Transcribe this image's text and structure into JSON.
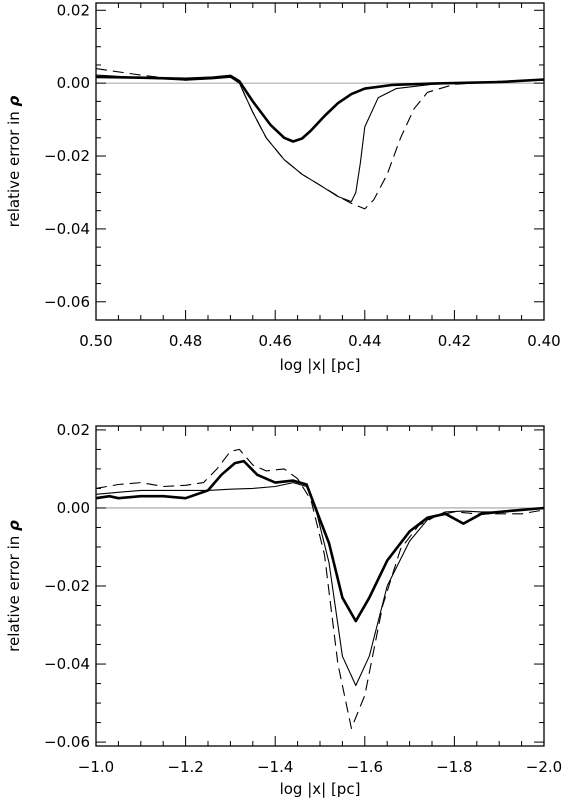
{
  "chart_data": [
    {
      "type": "line",
      "xlabel": "log |x| [pc]",
      "ylabel_text": "relative error in ",
      "ylabel_symbol": "ρ",
      "xlim": [
        0.5,
        0.4
      ],
      "ylim": [
        -0.065,
        0.022
      ],
      "xticks": [
        0.5,
        0.48,
        0.46,
        0.44,
        0.42,
        0.4
      ],
      "xtick_labels": [
        "0.50",
        "0.48",
        "0.46",
        "0.44",
        "0.42",
        "0.40"
      ],
      "yticks": [
        0.02,
        0.0,
        -0.02,
        -0.04,
        -0.06
      ],
      "ytick_labels": [
        "0.02",
        "0.00",
        "−0.02",
        "−0.04",
        "−0.06"
      ],
      "reference_line": 0,
      "series": [
        {
          "style": "thick",
          "points": [
            [
              0.5,
              0.0017
            ],
            [
              0.49,
              0.0015
            ],
            [
              0.48,
              0.0012
            ],
            [
              0.474,
              0.0015
            ],
            [
              0.47,
              0.002
            ],
            [
              0.468,
              0.0005
            ],
            [
              0.465,
              -0.005
            ],
            [
              0.461,
              -0.0115
            ],
            [
              0.458,
              -0.015
            ],
            [
              0.456,
              -0.016
            ],
            [
              0.454,
              -0.0152
            ],
            [
              0.452,
              -0.013
            ],
            [
              0.449,
              -0.009
            ],
            [
              0.446,
              -0.0055
            ],
            [
              0.443,
              -0.003
            ],
            [
              0.44,
              -0.0015
            ],
            [
              0.434,
              -0.0005
            ],
            [
              0.425,
              -0.0001
            ],
            [
              0.41,
              0.0003
            ],
            [
              0.4,
              0.001
            ]
          ]
        },
        {
          "style": "thin",
          "points": [
            [
              0.5,
              0.0022
            ],
            [
              0.49,
              0.0015
            ],
            [
              0.48,
              0.0008
            ],
            [
              0.474,
              0.0012
            ],
            [
              0.47,
              0.0016
            ],
            [
              0.468,
              0.0
            ],
            [
              0.465,
              -0.008
            ],
            [
              0.462,
              -0.015
            ],
            [
              0.458,
              -0.021
            ],
            [
              0.454,
              -0.025
            ],
            [
              0.45,
              -0.028
            ],
            [
              0.446,
              -0.0311
            ],
            [
              0.443,
              -0.0325
            ],
            [
              0.442,
              -0.03
            ],
            [
              0.441,
              -0.022
            ],
            [
              0.44,
              -0.012
            ],
            [
              0.437,
              -0.004
            ],
            [
              0.433,
              -0.0015
            ],
            [
              0.425,
              -0.0003
            ],
            [
              0.41,
              0.0003
            ],
            [
              0.4,
              0.001
            ]
          ]
        },
        {
          "style": "dashed",
          "points": [
            [
              0.5,
              0.004
            ],
            [
              0.49,
              0.0022
            ],
            [
              0.48,
              0.0008
            ],
            [
              0.474,
              0.0015
            ],
            [
              0.47,
              0.0018
            ],
            [
              0.468,
              0.0
            ],
            [
              0.465,
              -0.008
            ],
            [
              0.462,
              -0.015
            ],
            [
              0.458,
              -0.021
            ],
            [
              0.454,
              -0.025
            ],
            [
              0.45,
              -0.028
            ],
            [
              0.446,
              -0.031
            ],
            [
              0.443,
              -0.033
            ],
            [
              0.44,
              -0.0345
            ],
            [
              0.438,
              -0.032
            ],
            [
              0.435,
              -0.025
            ],
            [
              0.432,
              -0.015
            ],
            [
              0.429,
              -0.007
            ],
            [
              0.426,
              -0.0025
            ],
            [
              0.42,
              -0.0003
            ],
            [
              0.41,
              0.0005
            ],
            [
              0.4,
              0.0008
            ]
          ]
        }
      ]
    },
    {
      "type": "line",
      "xlabel": "log |x| [pc]",
      "ylabel_text": "relative error in ",
      "ylabel_symbol": "ρ",
      "xlim": [
        -1.0,
        -2.0
      ],
      "ylim": [
        -0.061,
        0.021
      ],
      "xticks": [
        -1.0,
        -1.2,
        -1.4,
        -1.6,
        -1.8,
        -2.0
      ],
      "xtick_labels": [
        "−1.0",
        "−1.2",
        "−1.4",
        "−1.6",
        "−1.8",
        "−2.0"
      ],
      "yticks": [
        0.02,
        0.0,
        -0.02,
        -0.04,
        -0.06
      ],
      "ytick_labels": [
        "0.02",
        "0.00",
        "−0.02",
        "−0.04",
        "−0.06"
      ],
      "reference_line": 0,
      "series": [
        {
          "style": "thick",
          "points": [
            [
              -1.0,
              0.0025
            ],
            [
              -1.03,
              0.003
            ],
            [
              -1.05,
              0.0025
            ],
            [
              -1.1,
              0.003
            ],
            [
              -1.15,
              0.003
            ],
            [
              -1.2,
              0.0025
            ],
            [
              -1.25,
              0.0045
            ],
            [
              -1.28,
              0.0085
            ],
            [
              -1.31,
              0.0115
            ],
            [
              -1.33,
              0.012
            ],
            [
              -1.36,
              0.0085
            ],
            [
              -1.4,
              0.0065
            ],
            [
              -1.44,
              0.007
            ],
            [
              -1.47,
              0.006
            ],
            [
              -1.49,
              0.0
            ],
            [
              -1.52,
              -0.009
            ],
            [
              -1.55,
              -0.023
            ],
            [
              -1.58,
              -0.029
            ],
            [
              -1.61,
              -0.023
            ],
            [
              -1.65,
              -0.0135
            ],
            [
              -1.7,
              -0.006
            ],
            [
              -1.74,
              -0.0025
            ],
            [
              -1.78,
              -0.0015
            ],
            [
              -1.82,
              -0.004
            ],
            [
              -1.86,
              -0.0015
            ],
            [
              -1.9,
              -0.001
            ],
            [
              -1.95,
              -0.0005
            ],
            [
              -2.0,
              0.0
            ]
          ]
        },
        {
          "style": "thin",
          "points": [
            [
              -1.0,
              0.0035
            ],
            [
              -1.05,
              0.004
            ],
            [
              -1.1,
              0.0045
            ],
            [
              -1.15,
              0.0045
            ],
            [
              -1.2,
              0.0045
            ],
            [
              -1.25,
              0.0045
            ],
            [
              -1.3,
              0.0048
            ],
            [
              -1.35,
              0.005
            ],
            [
              -1.4,
              0.0055
            ],
            [
              -1.44,
              0.0065
            ],
            [
              -1.47,
              0.0055
            ],
            [
              -1.49,
              0.0
            ],
            [
              -1.52,
              -0.014
            ],
            [
              -1.55,
              -0.038
            ],
            [
              -1.58,
              -0.0455
            ],
            [
              -1.61,
              -0.038
            ],
            [
              -1.65,
              -0.02
            ],
            [
              -1.7,
              -0.0085
            ],
            [
              -1.74,
              -0.003
            ],
            [
              -1.78,
              -0.001
            ],
            [
              -1.82,
              -0.0008
            ],
            [
              -1.86,
              -0.001
            ],
            [
              -1.9,
              -0.001
            ],
            [
              -1.95,
              -0.0005
            ],
            [
              -2.0,
              0.0
            ]
          ]
        },
        {
          "style": "dashed",
          "points": [
            [
              -1.0,
              0.005
            ],
            [
              -1.05,
              0.006
            ],
            [
              -1.1,
              0.0065
            ],
            [
              -1.15,
              0.0055
            ],
            [
              -1.2,
              0.0058
            ],
            [
              -1.24,
              0.0065
            ],
            [
              -1.27,
              0.01
            ],
            [
              -1.3,
              0.0145
            ],
            [
              -1.32,
              0.015
            ],
            [
              -1.35,
              0.011
            ],
            [
              -1.38,
              0.0095
            ],
            [
              -1.42,
              0.01
            ],
            [
              -1.45,
              0.0075
            ],
            [
              -1.48,
              0.002
            ],
            [
              -1.51,
              -0.012
            ],
            [
              -1.54,
              -0.04
            ],
            [
              -1.57,
              -0.0565
            ],
            [
              -1.6,
              -0.048
            ],
            [
              -1.64,
              -0.025
            ],
            [
              -1.68,
              -0.0105
            ],
            [
              -1.72,
              -0.0045
            ],
            [
              -1.76,
              -0.002
            ],
            [
              -1.8,
              -0.001
            ],
            [
              -1.85,
              -0.0015
            ],
            [
              -1.9,
              -0.0015
            ],
            [
              -1.95,
              -0.0015
            ],
            [
              -2.0,
              -0.0005
            ]
          ]
        }
      ]
    }
  ]
}
